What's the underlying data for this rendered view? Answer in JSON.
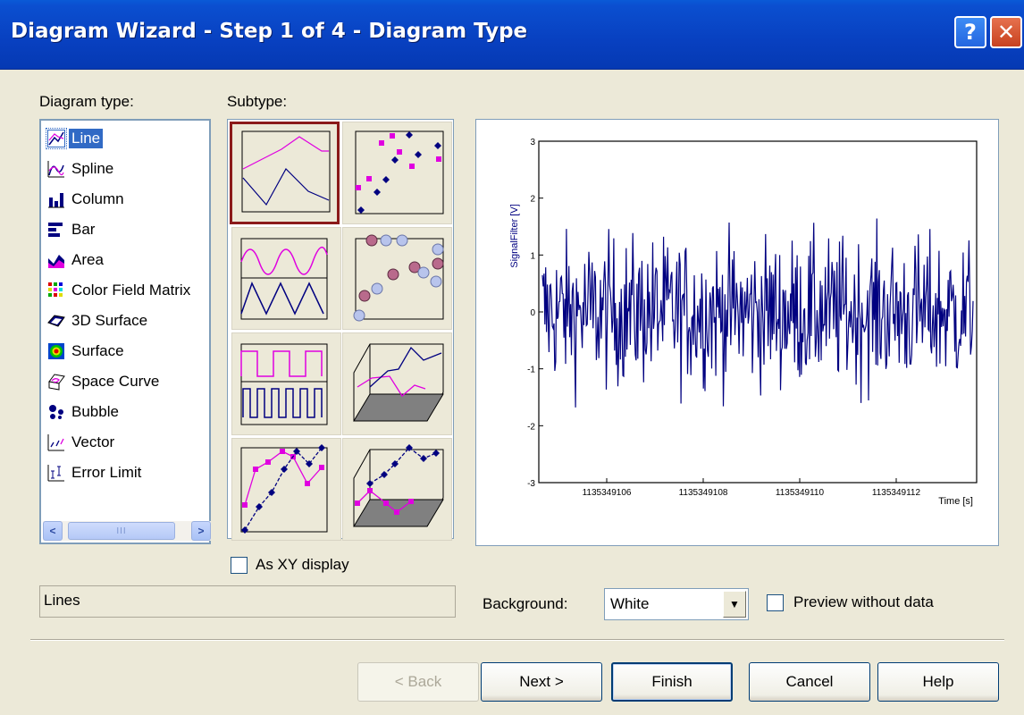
{
  "window": {
    "title": "Diagram Wizard - Step 1 of 4 - Diagram Type",
    "help_glyph": "?",
    "close_glyph": "✕"
  },
  "diagram_type": {
    "label": "Diagram type:",
    "items": [
      {
        "label": "Line",
        "icon": "line-chart-icon",
        "selected": true
      },
      {
        "label": "Spline",
        "icon": "spline-chart-icon"
      },
      {
        "label": "Column",
        "icon": "column-chart-icon"
      },
      {
        "label": "Bar",
        "icon": "bar-chart-icon"
      },
      {
        "label": "Area",
        "icon": "area-chart-icon"
      },
      {
        "label": "Color Field Matrix",
        "icon": "color-matrix-icon"
      },
      {
        "label": "3D Surface",
        "icon": "3d-surface-icon"
      },
      {
        "label": "Surface",
        "icon": "surface-icon"
      },
      {
        "label": "Space Curve",
        "icon": "space-curve-icon"
      },
      {
        "label": "Bubble",
        "icon": "bubble-chart-icon"
      },
      {
        "label": "Vector",
        "icon": "vector-icon"
      },
      {
        "label": "Error Limit",
        "icon": "error-limit-icon"
      }
    ],
    "scroll_left": "<",
    "scroll_right": ">",
    "scroll_grip": "III"
  },
  "subtype": {
    "label": "Subtype:",
    "selected_index": 0
  },
  "as_xy": {
    "label": "As XY display",
    "checked": false
  },
  "status": {
    "text": "Lines"
  },
  "background": {
    "label": "Background:",
    "value": "White"
  },
  "preview_without_data": {
    "label": "Preview without data",
    "checked": false
  },
  "buttons": {
    "back": "< Back",
    "next": "Next >",
    "finish": "Finish",
    "cancel": "Cancel",
    "help": "Help"
  },
  "preview_chart": {
    "ylabel": "SignalFilter [V]",
    "xlabel": "Time [s]",
    "y_ticks": [
      "3",
      "2",
      "1",
      "0",
      "-1",
      "-2",
      "-3"
    ],
    "x_ticks": [
      "1135349106",
      "1135349108",
      "1135349110",
      "1135349112"
    ],
    "colors": {
      "series": "#000080",
      "axis_text": "#000080"
    }
  }
}
